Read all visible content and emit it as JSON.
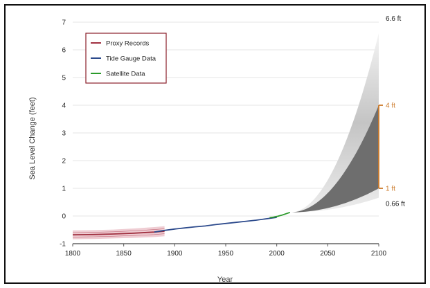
{
  "chart_data": {
    "type": "line",
    "xlabel": "Year",
    "ylabel": "Sea Level Change (feet)",
    "xlim": [
      1800,
      2100
    ],
    "ylim": [
      -1,
      7
    ],
    "x_ticks": [
      "1800",
      "1850",
      "1900",
      "1950",
      "2000",
      "2050",
      "2100"
    ],
    "y_ticks": [
      "-1",
      "0",
      "1",
      "2",
      "3",
      "4",
      "5",
      "6",
      "7"
    ],
    "grid": true,
    "legend_position": "top-left",
    "series": [
      {
        "name": "Proxy Records",
        "color": "#a03040",
        "x": [
          1800,
          1820,
          1840,
          1860,
          1880,
          1890
        ],
        "y": [
          -0.68,
          -0.67,
          -0.65,
          -0.62,
          -0.58,
          -0.55
        ],
        "band_upper": [
          -0.52,
          -0.51,
          -0.49,
          -0.45,
          -0.4,
          -0.37
        ],
        "band_lower": [
          -0.84,
          -0.83,
          -0.81,
          -0.79,
          -0.76,
          -0.73
        ]
      },
      {
        "name": "Tide Gauge Data",
        "color": "#2c4a8c",
        "x": [
          1880,
          1890,
          1900,
          1910,
          1920,
          1930,
          1940,
          1950,
          1960,
          1970,
          1980,
          1990,
          2000
        ],
        "y": [
          -0.58,
          -0.52,
          -0.47,
          -0.43,
          -0.39,
          -0.36,
          -0.31,
          -0.27,
          -0.23,
          -0.19,
          -0.15,
          -0.1,
          -0.05
        ]
      },
      {
        "name": "Satellite Data",
        "color": "#2a9a2a",
        "x": [
          1993,
          1997,
          2001,
          2005,
          2009,
          2013
        ],
        "y": [
          -0.06,
          -0.04,
          -0.01,
          0.03,
          0.08,
          0.13
        ]
      }
    ],
    "projection": {
      "start_year": 2013,
      "start_value": 0.13,
      "end_year": 2100,
      "lowest": 0.66,
      "highest": 6.6,
      "intermediate_low": 1,
      "intermediate_high": 4,
      "bracket_color": "#cc7a2a"
    },
    "annotations": {
      "highest": "6.6 ft",
      "intermediate_high": "4 ft",
      "intermediate_low": "1 ft",
      "lowest": "0.66 ft"
    }
  }
}
